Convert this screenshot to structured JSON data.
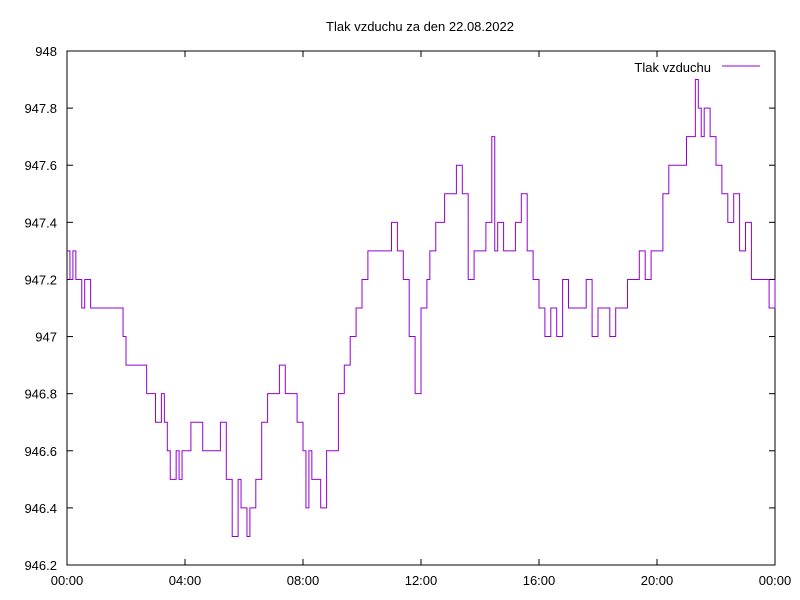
{
  "chart_data": {
    "type": "line",
    "title": "Tlak vzduchu za den 22.08.2022",
    "xlabel": "",
    "ylabel": "",
    "xlim": [
      0,
      24
    ],
    "ylim": [
      946.2,
      948.0
    ],
    "x_ticks": [
      {
        "value": 0,
        "label": "00:00"
      },
      {
        "value": 4,
        "label": "04:00"
      },
      {
        "value": 8,
        "label": "08:00"
      },
      {
        "value": 12,
        "label": "12:00"
      },
      {
        "value": 16,
        "label": "16:00"
      },
      {
        "value": 20,
        "label": "20:00"
      },
      {
        "value": 24,
        "label": "00:00"
      }
    ],
    "y_ticks": [
      {
        "value": 946.2,
        "label": "946.2"
      },
      {
        "value": 946.4,
        "label": "946.4"
      },
      {
        "value": 946.6,
        "label": "946.6"
      },
      {
        "value": 946.8,
        "label": "946.8"
      },
      {
        "value": 947.0,
        "label": "947"
      },
      {
        "value": 947.2,
        "label": "947.2"
      },
      {
        "value": 947.4,
        "label": "947.4"
      },
      {
        "value": 947.6,
        "label": "947.6"
      },
      {
        "value": 947.8,
        "label": "947.8"
      },
      {
        "value": 948.0,
        "label": "948"
      }
    ],
    "grid": false,
    "legend_position": "top-right",
    "series": [
      {
        "name": "Tlak vzduchu",
        "color": "#9400d3",
        "step": true,
        "x": [
          0.0,
          0.1,
          0.2,
          0.3,
          0.4,
          0.5,
          0.6,
          0.7,
          0.8,
          0.9,
          1.0,
          1.1,
          1.2,
          1.3,
          1.4,
          1.6,
          1.9,
          2.0,
          2.1,
          2.2,
          2.3,
          2.4,
          2.5,
          2.6,
          2.7,
          2.8,
          3.0,
          3.1,
          3.2,
          3.3,
          3.4,
          3.5,
          3.6,
          3.7,
          3.8,
          3.9,
          4.0,
          4.2,
          4.4,
          4.6,
          4.8,
          5.0,
          5.2,
          5.4,
          5.6,
          5.8,
          5.9,
          6.0,
          6.1,
          6.2,
          6.4,
          6.6,
          6.8,
          7.0,
          7.2,
          7.4,
          7.6,
          7.8,
          8.0,
          8.1,
          8.2,
          8.3,
          8.4,
          8.6,
          8.8,
          9.0,
          9.2,
          9.4,
          9.6,
          9.8,
          10.0,
          10.2,
          10.4,
          10.6,
          10.8,
          11.0,
          11.2,
          11.4,
          11.6,
          11.8,
          12.0,
          12.2,
          12.3,
          12.4,
          12.5,
          12.6,
          12.8,
          13.0,
          13.2,
          13.4,
          13.6,
          13.8,
          14.0,
          14.2,
          14.4,
          14.5,
          14.6,
          14.8,
          15.0,
          15.2,
          15.4,
          15.6,
          15.8,
          16.0,
          16.2,
          16.4,
          16.6,
          16.8,
          17.0,
          17.2,
          17.4,
          17.6,
          17.8,
          18.0,
          18.2,
          18.4,
          18.6,
          18.8,
          19.0,
          19.2,
          19.4,
          19.6,
          19.8,
          20.0,
          20.2,
          20.4,
          20.6,
          20.8,
          21.0,
          21.2,
          21.3,
          21.4,
          21.5,
          21.6,
          21.8,
          22.0,
          22.2,
          22.4,
          22.6,
          22.8,
          23.0,
          23.2,
          23.4,
          23.6,
          23.8,
          24.0
        ],
        "values": [
          947.3,
          947.2,
          947.3,
          947.2,
          947.2,
          947.1,
          947.2,
          947.2,
          947.1,
          947.1,
          947.1,
          947.1,
          947.1,
          947.1,
          947.1,
          947.1,
          947.0,
          946.9,
          946.9,
          946.9,
          946.9,
          946.9,
          946.9,
          946.9,
          946.8,
          946.8,
          946.7,
          946.7,
          946.8,
          946.7,
          946.6,
          946.5,
          946.5,
          946.6,
          946.5,
          946.6,
          946.6,
          946.7,
          946.7,
          946.6,
          946.6,
          946.6,
          946.7,
          946.5,
          946.3,
          946.5,
          946.4,
          946.4,
          946.3,
          946.4,
          946.5,
          946.7,
          946.8,
          946.8,
          946.9,
          946.8,
          946.8,
          946.7,
          946.6,
          946.4,
          946.6,
          946.5,
          946.5,
          946.4,
          946.6,
          946.6,
          946.8,
          946.9,
          947.0,
          947.1,
          947.2,
          947.3,
          947.3,
          947.3,
          947.3,
          947.4,
          947.3,
          947.2,
          947.0,
          946.8,
          947.1,
          947.2,
          947.3,
          947.3,
          947.4,
          947.4,
          947.5,
          947.5,
          947.6,
          947.5,
          947.2,
          947.3,
          947.3,
          947.4,
          947.7,
          947.3,
          947.4,
          947.3,
          947.3,
          947.4,
          947.5,
          947.3,
          947.2,
          947.1,
          947.0,
          947.1,
          947.0,
          947.2,
          947.1,
          947.1,
          947.1,
          947.2,
          947.0,
          947.1,
          947.1,
          947.0,
          947.1,
          947.1,
          947.2,
          947.2,
          947.3,
          947.2,
          947.3,
          947.3,
          947.5,
          947.6,
          947.6,
          947.6,
          947.7,
          947.7,
          947.9,
          947.8,
          947.7,
          947.8,
          947.7,
          947.6,
          947.5,
          947.4,
          947.5,
          947.3,
          947.4,
          947.2,
          947.2,
          947.2,
          947.1,
          947.2
        ]
      }
    ]
  }
}
